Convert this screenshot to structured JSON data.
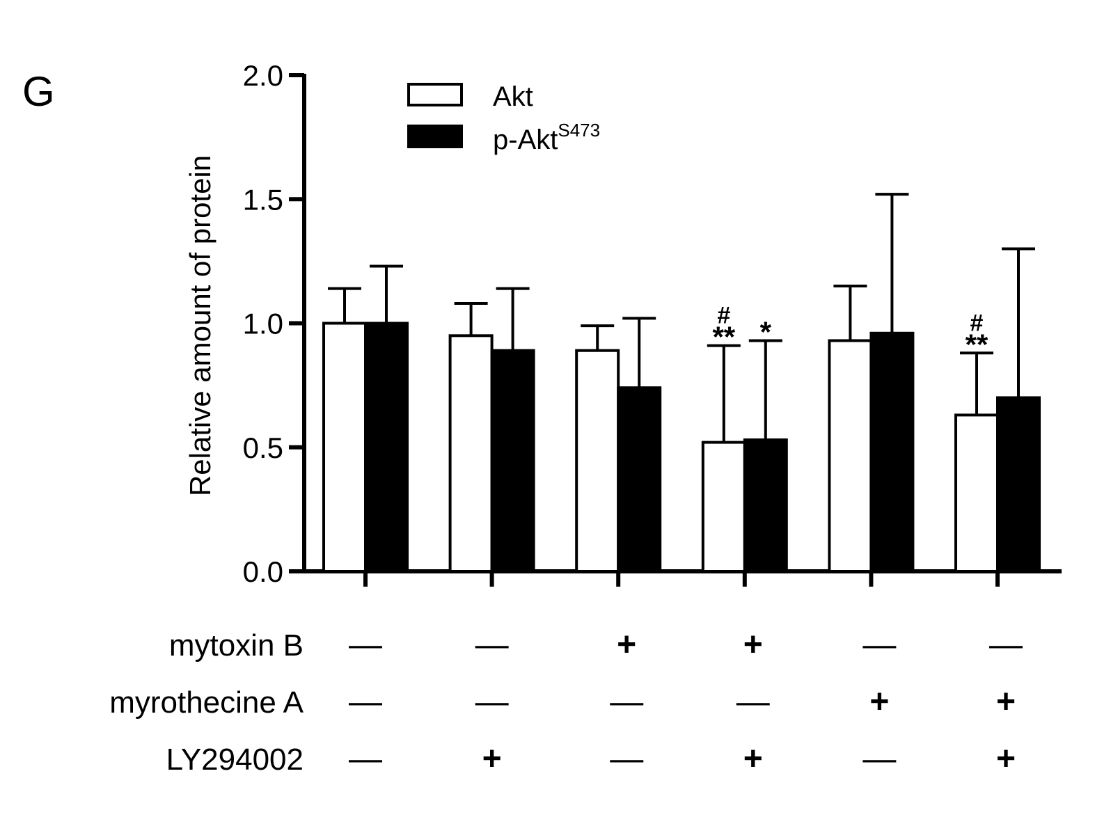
{
  "panel_label": "G",
  "chart_data": {
    "type": "bar",
    "ylabel": "Relative amount of protein",
    "ylim": [
      0,
      2.0
    ],
    "yticks": [
      "0.0",
      "0.5",
      "1.0",
      "1.5",
      "2.0"
    ],
    "legend_position": "top-left",
    "groups": 6,
    "series": [
      {
        "name": "Akt",
        "color": "#ffffff",
        "values": [
          1.0,
          0.95,
          0.89,
          0.52,
          0.93,
          0.63
        ],
        "errors": [
          0.14,
          0.13,
          0.1,
          0.39,
          0.22,
          0.25
        ],
        "annotations": [
          [
            "",
            ""
          ],
          [
            "",
            ""
          ],
          [
            "",
            ""
          ],
          [
            "#",
            "**"
          ],
          [
            "",
            ""
          ],
          [
            "#",
            "**"
          ]
        ]
      },
      {
        "name": "p-Akt",
        "name_superscript": "S473",
        "color": "#000000",
        "values": [
          1.0,
          0.89,
          0.74,
          0.53,
          0.96,
          0.7
        ],
        "errors": [
          0.23,
          0.25,
          0.28,
          0.4,
          0.56,
          0.6
        ],
        "annotations": [
          [
            "",
            ""
          ],
          [
            "",
            ""
          ],
          [
            "",
            ""
          ],
          [
            "",
            "*"
          ],
          [
            "",
            ""
          ],
          [
            "",
            ""
          ]
        ]
      }
    ],
    "conditions": [
      {
        "label": "mytoxin B",
        "marks": [
          "—",
          "—",
          "+",
          "+",
          "—",
          "—"
        ]
      },
      {
        "label": "myrothecine A",
        "marks": [
          "—",
          "—",
          "—",
          "—",
          "+",
          "+"
        ]
      },
      {
        "label": "LY294002",
        "marks": [
          "—",
          "+",
          "—",
          "+",
          "—",
          "+"
        ]
      }
    ]
  }
}
